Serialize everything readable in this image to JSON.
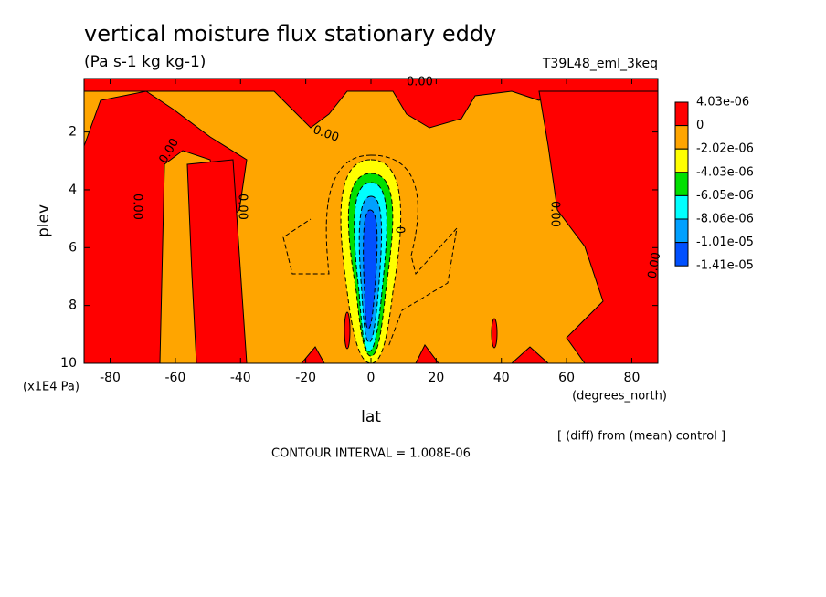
{
  "chart_data": {
    "type": "contour",
    "title": "vertical moisture flux stationary eddy",
    "subtitle": "(Pa s-1 kg kg-1)",
    "dataset": "T39L48_eml_3keq",
    "x_label": "lat",
    "x_units": "(degrees_north)",
    "y_label": "plev",
    "y_units": "(x1E4 Pa)",
    "note": "[ (diff) from (mean) control ]",
    "contour_interval": "CONTOUR INTERVAL = 1.008E-06",
    "xlim": [
      -88,
      88
    ],
    "xticks": [
      -80,
      -60,
      -40,
      -20,
      0,
      20,
      40,
      60,
      80
    ],
    "ylim": [
      10,
      0.15
    ],
    "yticks": [
      2,
      4,
      6,
      8,
      10
    ],
    "contour_labels": [
      "0.00",
      "0.00",
      "0.00",
      "0.00",
      "0.00",
      "0.00",
      "0.00",
      "0"
    ],
    "colorbar": {
      "levels": [
        {
          "value": 4.03e-06,
          "label": "4.03e-06"
        },
        0,
        {
          "value": -2.02e-06,
          "label": "-2.02e-06"
        },
        {
          "value": -4.03e-06,
          "label": "-4.03e-06"
        },
        {
          "value": -6.05e-06,
          "label": "-6.05e-06"
        },
        {
          "value": -8.06e-06,
          "label": "-8.06e-06"
        },
        {
          "value": -1.01e-05,
          "label": "-1.01e-05"
        },
        {
          "value": -1.41e-05,
          "label": "-1.41e-05"
        }
      ],
      "colors": [
        "#ff0000",
        "#ffa500",
        "#ffff00",
        "#00e000",
        "#00ffff",
        "#00a0ff",
        "#0050ff"
      ]
    }
  }
}
